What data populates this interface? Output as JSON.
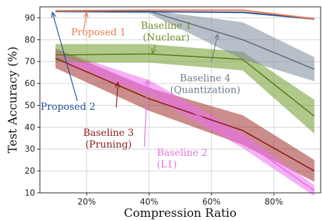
{
  "chart_data": {
    "type": "line",
    "xlabel": "Compression Ratio",
    "ylabel": "Test Accuracy (%)",
    "xlim": [
      5,
      95
    ],
    "ylim": [
      10,
      95
    ],
    "x_ticks": [
      20,
      40,
      60,
      80
    ],
    "x_tick_labels": [
      "20%",
      "40%",
      "60%",
      "80%"
    ],
    "y_ticks": [
      10,
      20,
      30,
      40,
      50,
      60,
      70,
      80,
      90
    ],
    "y_tick_labels": [
      "10",
      "20",
      "30",
      "40",
      "50",
      "60",
      "70",
      "80",
      "90"
    ],
    "grid": true,
    "series": [
      {
        "id": "baseline-3",
        "color": "#8b1a1a",
        "band_color": "#a0302c",
        "x": [
          10,
          40,
          70,
          93
        ],
        "y": [
          71.5,
          53,
          38.5,
          20
        ],
        "lower": [
          67,
          47.5,
          32,
          15
        ],
        "upper": [
          76,
          58,
          45.5,
          25
        ]
      },
      {
        "id": "baseline-2",
        "color": "#e070e0",
        "band_color": "#ee6fee",
        "x": [
          10,
          40,
          70,
          93
        ],
        "y": [
          73,
          58,
          34,
          11
        ],
        "lower": [
          70.5,
          54.5,
          30.5,
          8.5
        ],
        "upper": [
          75.5,
          61.5,
          37.5,
          13.5
        ]
      },
      {
        "id": "baseline-1",
        "color": "#5a7a18",
        "band_color": "#6f9a2a",
        "x": [
          10,
          40,
          70,
          93
        ],
        "y": [
          73,
          73.5,
          71,
          45
        ],
        "lower": [
          69.5,
          69.5,
          66,
          37
        ],
        "upper": [
          78,
          78,
          74.5,
          52.5
        ]
      },
      {
        "id": "baseline-4",
        "color": "#5f6f82",
        "band_color": "#7c8a9a",
        "x": [
          10,
          40,
          70,
          93
        ],
        "y": [
          93,
          93,
          80,
          66.5
        ],
        "lower": [
          92.5,
          92,
          71,
          61
        ],
        "upper": [
          93.5,
          93.5,
          88,
          72
        ]
      },
      {
        "id": "proposed-2",
        "color": "#1f4f99",
        "band_color": "#1f4f99",
        "x": [
          10,
          40,
          70,
          93
        ],
        "y": [
          93,
          92.8,
          92.5,
          89.5
        ],
        "lower": [
          92.7,
          92.5,
          92.1,
          89
        ],
        "upper": [
          93.3,
          93.1,
          92.9,
          90
        ]
      },
      {
        "id": "proposed-1",
        "color": "#f07a50",
        "band_color": "#f07a50",
        "x": [
          10,
          40,
          70,
          93
        ],
        "y": [
          93.2,
          93.5,
          93.5,
          89.5
        ],
        "lower": [
          92.8,
          93.1,
          93.1,
          89
        ],
        "upper": [
          93.6,
          93.9,
          93.9,
          90
        ]
      }
    ],
    "annotations": [
      {
        "id": "proposed-1",
        "lines": [
          "Proposed 1"
        ],
        "color": "#f07a50",
        "label_xy": [
          15,
          82
        ],
        "arrow_from": [
          19,
          84
        ],
        "arrow_to": [
          20,
          92.5
        ],
        "anchor": "start"
      },
      {
        "id": "baseline-1",
        "lines": [
          "Baseline 1",
          "(Nuclear)"
        ],
        "color": "#6f8d2e",
        "label_xy": [
          45.5,
          85
        ],
        "arrow_from": [
          42,
          77.5
        ],
        "arrow_to": [
          41,
          73.5
        ],
        "anchor": "middle"
      },
      {
        "id": "baseline-4",
        "lines": [
          "Baseline 4",
          "(Quantization)"
        ],
        "color": "#6c7b8c",
        "label_xy": [
          58,
          61
        ],
        "arrow_from": [
          60,
          70
        ],
        "arrow_to": [
          62,
          82.5
        ],
        "anchor": "middle"
      },
      {
        "id": "proposed-2",
        "lines": [
          "Proposed 2"
        ],
        "color": "#1f4f99",
        "label_xy": [
          14,
          48
        ],
        "arrow_from": [
          17,
          52
        ],
        "arrow_to": [
          9,
          92.5
        ],
        "anchor": "middle"
      },
      {
        "id": "baseline-3",
        "lines": [
          "Baseline 3",
          "(Pruning)"
        ],
        "color": "#8b1a1a",
        "label_xy": [
          27,
          36
        ],
        "arrow_from": [
          29.5,
          49
        ],
        "arrow_to": [
          30,
          60.5
        ],
        "anchor": "middle"
      },
      {
        "id": "baseline-2",
        "lines": [
          "Baseline 2",
          "(L1)"
        ],
        "color": "#e070e0",
        "label_xy": [
          42.5,
          27
        ],
        "arrow_from": [
          38.5,
          31
        ],
        "arrow_to": [
          39.5,
          61.5
        ],
        "anchor": "start"
      }
    ]
  }
}
